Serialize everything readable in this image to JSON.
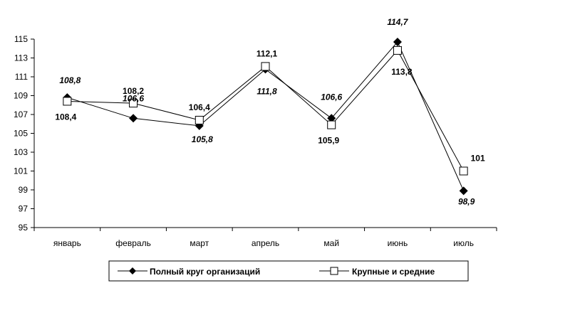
{
  "chart_data": {
    "type": "line",
    "categories": [
      "январь",
      "февраль",
      "март",
      "апрель",
      "май",
      "июнь",
      "июль"
    ],
    "ylim": [
      95,
      115
    ],
    "yticks": [
      "95",
      "97",
      "99",
      "101",
      "103",
      "105",
      "107",
      "109",
      "111",
      "113",
      "115"
    ],
    "grid": false,
    "legend_position": "bottom",
    "series": [
      {
        "name": "Полный круг организаций",
        "marker": "filled-diamond",
        "color": "#000000",
        "values": [
          108.8,
          106.6,
          105.8,
          111.8,
          106.6,
          114.7,
          98.9
        ],
        "labels": [
          "108,8",
          "106,6",
          "105,8",
          "111,8",
          "106,6",
          "114,7",
          "98,9"
        ]
      },
      {
        "name": "Крупные и средние",
        "marker": "hollow-square",
        "color": "#000000",
        "values": [
          108.4,
          108.2,
          106.4,
          112.1,
          105.9,
          113.8,
          101
        ],
        "labels": [
          "108,4",
          "108,2",
          "106,4",
          "112,1",
          "105,9",
          "113,8",
          "101"
        ]
      }
    ]
  }
}
